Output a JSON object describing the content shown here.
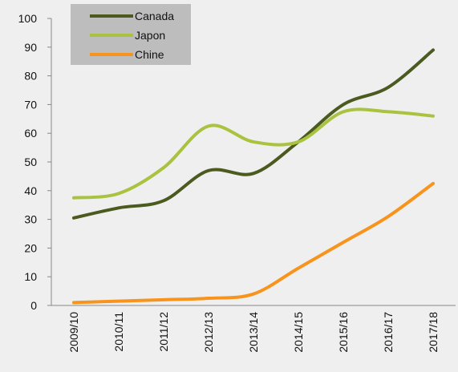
{
  "chart_data": {
    "type": "line",
    "categories": [
      "2009/10",
      "2010/11",
      "2011/12",
      "2012/13",
      "2013/14",
      "2014/15",
      "2015/16",
      "2016/17",
      "2017/18"
    ],
    "series": [
      {
        "name": "Canada",
        "color": "#4b5a1f",
        "values": [
          30.5,
          34,
          36.5,
          47,
          46,
          57,
          70,
          76,
          89
        ]
      },
      {
        "name": "Japon",
        "color": "#a9c23f",
        "values": [
          37.5,
          39,
          48,
          62.5,
          57,
          57,
          67.5,
          67.5,
          66
        ]
      },
      {
        "name": "Chine",
        "color": "#f7941d",
        "values": [
          1,
          1.5,
          2,
          2.5,
          4,
          13,
          22,
          31,
          42.5
        ]
      }
    ],
    "ylim": [
      0,
      100
    ],
    "yticks": [
      0,
      10,
      20,
      30,
      40,
      50,
      60,
      70,
      80,
      90,
      100
    ],
    "grid": false,
    "legend": "top-left"
  }
}
